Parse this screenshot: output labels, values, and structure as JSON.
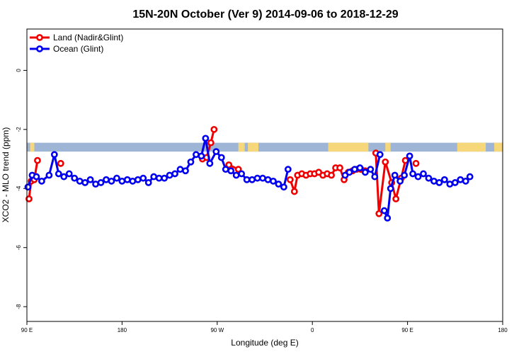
{
  "chart_data": {
    "type": "line",
    "title": "15N-20N October (Ver 9)   2014-09-06 to 2018-12-29",
    "xlabel": "Longitude (deg E)",
    "ylabel": "XCO2 - MLO trend (ppm)",
    "x_ticks": [
      {
        "value": 90,
        "label": "90 E"
      },
      {
        "value": 180,
        "label": "180"
      },
      {
        "value": 270,
        "label": "90 W"
      },
      {
        "value": 360,
        "label": "0"
      },
      {
        "value": 450,
        "label": "90 E"
      },
      {
        "value": 540,
        "label": "180"
      }
    ],
    "y_ticks": [
      0,
      -2,
      -4,
      -6,
      -8
    ],
    "xlim": [
      90,
      540
    ],
    "ylim": [
      -8.5,
      1.4
    ],
    "land_band": {
      "ymin": -2.75,
      "ymax": -2.45,
      "ocean_color": "#9fb5d6",
      "land_color": "#f6d77a"
    },
    "land_segments": [
      [
        93,
        97
      ],
      [
        290,
        296
      ],
      [
        299,
        309
      ],
      [
        375,
        413
      ],
      [
        429,
        434
      ],
      [
        497,
        524
      ],
      [
        532,
        541
      ]
    ],
    "legend_position": "top-left",
    "series": [
      {
        "name": "Land (Nadir&Glint)",
        "color": "#ee0000",
        "segments": [
          [
            [
              92,
              -4.35
            ],
            [
              94,
              -3.75
            ],
            [
              97,
              -3.7
            ],
            [
              100,
              -3.05
            ]
          ],
          [
            [
              122,
              -3.15
            ]
          ],
          [
            [
              256,
              -3.0
            ],
            [
              260,
              -2.95
            ],
            [
              264,
              -2.45
            ],
            [
              267,
              -2.0
            ]
          ],
          [
            [
              281,
              -3.2
            ],
            [
              290,
              -3.35
            ]
          ],
          [
            [
              339,
              -3.7
            ],
            [
              343,
              -4.1
            ],
            [
              346,
              -3.55
            ],
            [
              350,
              -3.5
            ],
            [
              354,
              -3.55
            ],
            [
              358,
              -3.5
            ],
            [
              362,
              -3.5
            ],
            [
              366,
              -3.45
            ],
            [
              370,
              -3.55
            ],
            [
              374,
              -3.5
            ],
            [
              378,
              -3.55
            ],
            [
              382,
              -3.3
            ],
            [
              386,
              -3.3
            ],
            [
              390,
              -3.7
            ],
            [
              394,
              -3.45
            ],
            [
              398,
              -3.4
            ],
            [
              402,
              -3.35
            ],
            [
              406,
              -3.35
            ],
            [
              410,
              -3.4
            ]
          ],
          [
            [
              420,
              -2.8
            ],
            [
              423,
              -4.85
            ],
            [
              429,
              -3.1
            ],
            [
              435,
              -3.8
            ],
            [
              439,
              -4.35
            ],
            [
              444,
              -3.65
            ],
            [
              448,
              -3.05
            ]
          ],
          [
            [
              458,
              -3.15
            ]
          ]
        ]
      },
      {
        "name": "Ocean (Glint)",
        "color": "#0000ee",
        "segments": [
          [
            [
              91,
              -3.95
            ],
            [
              95,
              -3.55
            ],
            [
              99,
              -3.6
            ],
            [
              104,
              -3.75
            ],
            [
              111,
              -3.55
            ],
            [
              116,
              -2.85
            ],
            [
              120,
              -3.5
            ],
            [
              125,
              -3.6
            ],
            [
              130,
              -3.5
            ],
            [
              135,
              -3.65
            ],
            [
              140,
              -3.75
            ],
            [
              145,
              -3.8
            ],
            [
              150,
              -3.7
            ],
            [
              155,
              -3.85
            ],
            [
              160,
              -3.8
            ],
            [
              165,
              -3.7
            ],
            [
              170,
              -3.75
            ],
            [
              175,
              -3.65
            ],
            [
              180,
              -3.75
            ],
            [
              185,
              -3.7
            ],
            [
              190,
              -3.75
            ],
            [
              195,
              -3.7
            ],
            [
              200,
              -3.65
            ],
            [
              205,
              -3.8
            ],
            [
              210,
              -3.6
            ],
            [
              215,
              -3.65
            ],
            [
              220,
              -3.65
            ],
            [
              225,
              -3.55
            ],
            [
              230,
              -3.5
            ],
            [
              235,
              -3.35
            ],
            [
              240,
              -3.4
            ],
            [
              245,
              -3.1
            ],
            [
              250,
              -2.85
            ],
            [
              255,
              -2.9
            ],
            [
              259,
              -2.3
            ],
            [
              263,
              -3.15
            ],
            [
              269,
              -2.75
            ],
            [
              274,
              -2.95
            ],
            [
              278,
              -3.35
            ],
            [
              283,
              -3.4
            ],
            [
              288,
              -3.55
            ],
            [
              293,
              -3.5
            ],
            [
              298,
              -3.7
            ],
            [
              303,
              -3.7
            ],
            [
              308,
              -3.65
            ],
            [
              313,
              -3.65
            ],
            [
              318,
              -3.7
            ],
            [
              323,
              -3.75
            ],
            [
              328,
              -3.85
            ],
            [
              333,
              -3.95
            ],
            [
              337,
              -3.35
            ]
          ],
          [
            [
              391,
              -3.55
            ],
            [
              395,
              -3.45
            ],
            [
              400,
              -3.35
            ],
            [
              405,
              -3.3
            ],
            [
              410,
              -3.45
            ],
            [
              415,
              -3.35
            ],
            [
              419,
              -3.6
            ],
            [
              424,
              -2.85
            ]
          ],
          [
            [
              428,
              -4.75
            ],
            [
              431,
              -5.0
            ],
            [
              434,
              -4.0
            ],
            [
              438,
              -3.55
            ],
            [
              443,
              -3.75
            ],
            [
              447,
              -3.55
            ],
            [
              452,
              -2.9
            ],
            [
              455,
              -3.5
            ],
            [
              460,
              -3.6
            ],
            [
              465,
              -3.5
            ],
            [
              470,
              -3.65
            ],
            [
              475,
              -3.75
            ],
            [
              480,
              -3.8
            ],
            [
              485,
              -3.7
            ],
            [
              490,
              -3.85
            ],
            [
              495,
              -3.8
            ],
            [
              500,
              -3.7
            ],
            [
              505,
              -3.75
            ],
            [
              509,
              -3.6
            ]
          ]
        ]
      }
    ]
  }
}
